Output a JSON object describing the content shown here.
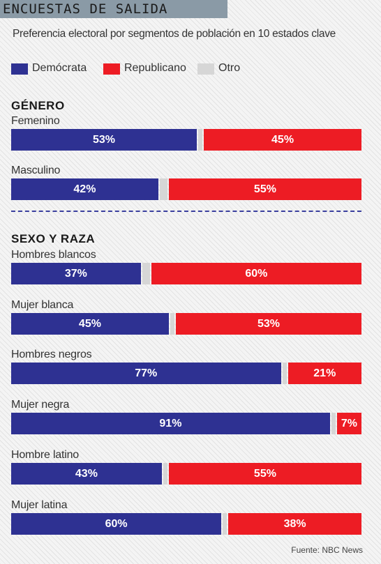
{
  "header": {
    "title": "ENCUESTAS DE SALIDA"
  },
  "subtitle": "Preferencia electoral por segmentos de población en 10 estados clave",
  "colors": {
    "dem": "#2e3192",
    "rep": "#ed1c24",
    "other": "#d6d6d6"
  },
  "legend": [
    {
      "label": "Demócrata",
      "color": "#2e3192"
    },
    {
      "label": "Republicano",
      "color": "#ed1c24"
    },
    {
      "label": "Otro",
      "color": "#d6d6d6"
    }
  ],
  "sections": [
    {
      "title": "GÉNERO"
    },
    {
      "title": "SEXO Y RAZA"
    }
  ],
  "chart_data": {
    "type": "bar",
    "stacked": true,
    "orientation": "horizontal",
    "categories": [
      "Femenino",
      "Masculino",
      "Hombres blancos",
      "Mujer blanca",
      "Hombres negros",
      "Mujer negra",
      "Hombre latino",
      "Mujer latina"
    ],
    "series": [
      {
        "name": "Demócrata",
        "values": [
          53,
          42,
          37,
          45,
          77,
          91,
          43,
          60
        ]
      },
      {
        "name": "Republicano",
        "values": [
          45,
          55,
          60,
          53,
          21,
          7,
          55,
          38
        ]
      }
    ],
    "value_labels": {
      "dem": [
        "53%",
        "42%",
        "37%",
        "45%",
        "77%",
        "91%",
        "43%",
        "60%"
      ],
      "rep": [
        "45%",
        "55%",
        "60%",
        "53%",
        "21%",
        "7%",
        "55%",
        "38%"
      ]
    },
    "xlim": [
      0,
      100
    ],
    "legend_position": "top-left",
    "grid": false
  },
  "source": "Fuente: NBC News"
}
